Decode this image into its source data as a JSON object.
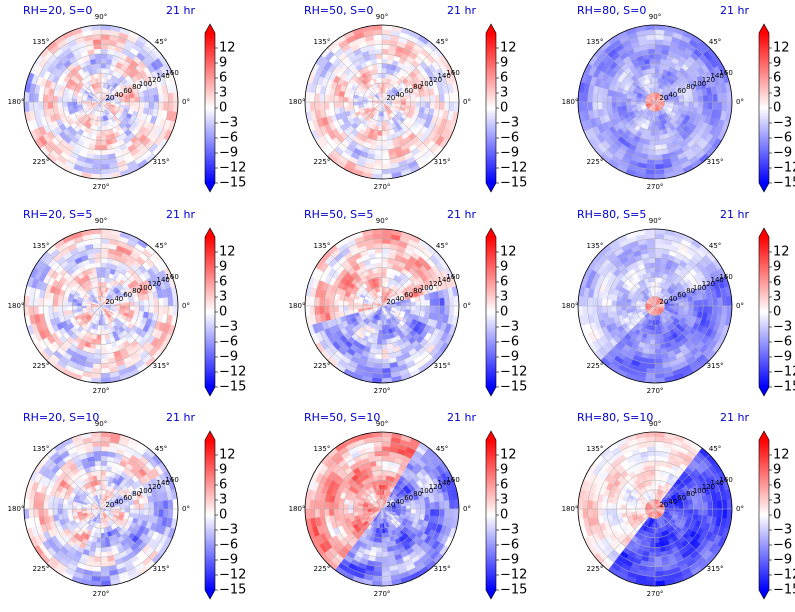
{
  "figure": {
    "chart_data": [
      {
        "type": "heatmap",
        "projection": "polar",
        "title": "RH=20, S=0",
        "time_label": "21 hr",
        "rh": 20,
        "s": 0
      },
      {
        "type": "heatmap",
        "projection": "polar",
        "title": "RH=50, S=0",
        "time_label": "21 hr",
        "rh": 50,
        "s": 0
      },
      {
        "type": "heatmap",
        "projection": "polar",
        "title": "RH=80, S=0",
        "time_label": "21 hr",
        "rh": 80,
        "s": 0
      },
      {
        "type": "heatmap",
        "projection": "polar",
        "title": "RH=20, S=5",
        "time_label": "21 hr",
        "rh": 20,
        "s": 5
      },
      {
        "type": "heatmap",
        "projection": "polar",
        "title": "RH=50, S=5",
        "time_label": "21 hr",
        "rh": 50,
        "s": 5
      },
      {
        "type": "heatmap",
        "projection": "polar",
        "title": "RH=80, S=5",
        "time_label": "21 hr",
        "rh": 80,
        "s": 5
      },
      {
        "type": "heatmap",
        "projection": "polar",
        "title": "RH=20, S=10",
        "time_label": "21 hr",
        "rh": 20,
        "s": 10
      },
      {
        "type": "heatmap",
        "projection": "polar",
        "title": "RH=50, S=10",
        "time_label": "21 hr",
        "rh": 50,
        "s": 10
      },
      {
        "type": "heatmap",
        "projection": "polar",
        "title": "RH=80, S=10",
        "time_label": "21 hr",
        "rh": 80,
        "s": 10
      }
    ],
    "angular_ticks": [
      "0°",
      "45°",
      "90°",
      "135°",
      "180°",
      "225°",
      "270°",
      "315°"
    ],
    "radial_ticks": [
      "20",
      "40",
      "60",
      "80",
      "100",
      "120",
      "140",
      "160"
    ],
    "radial_max": 160,
    "colorbar": {
      "ticks": [
        "12",
        "9",
        "6",
        "3",
        "0",
        "−3",
        "−6",
        "−9",
        "−12",
        "−15"
      ],
      "vmin": -15,
      "vmax": 15,
      "extend": "both",
      "colormap": "bwr",
      "color_low": "#0000ff",
      "color_mid": "#ffffff",
      "color_high": "#ff0000"
    },
    "grid": true
  }
}
